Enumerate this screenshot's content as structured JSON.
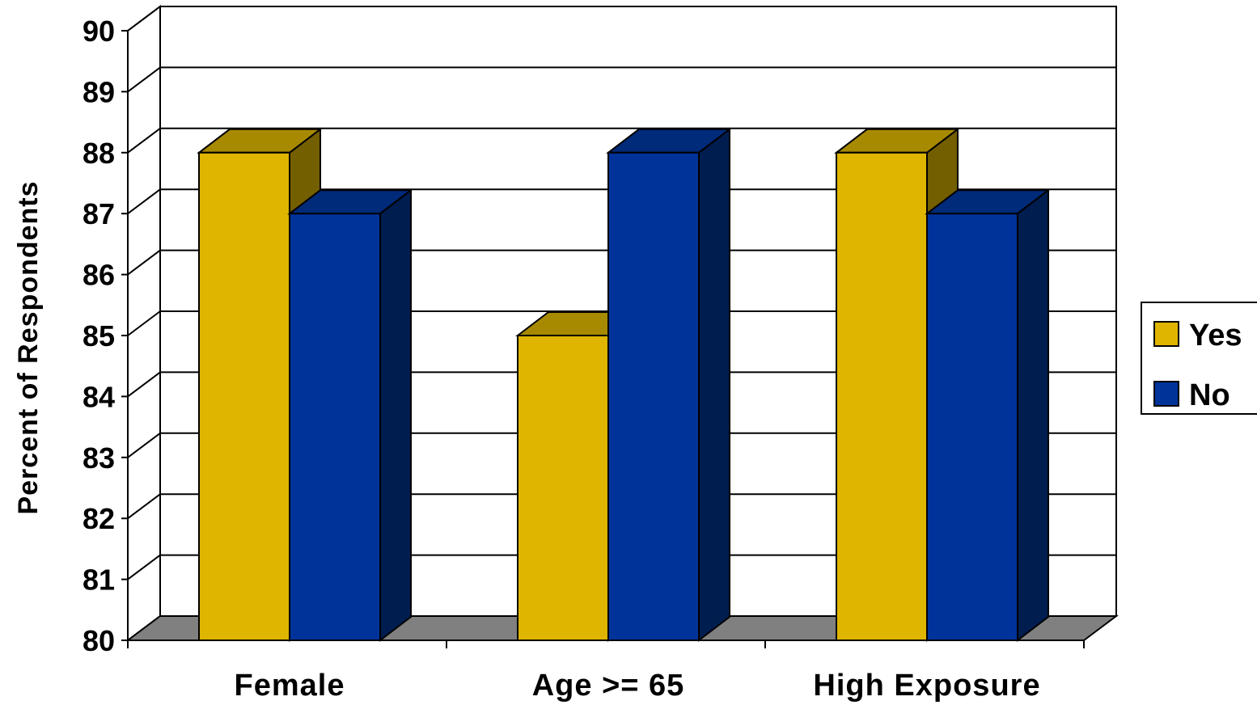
{
  "chart_data": {
    "type": "bar",
    "style": "3d-clustered-column",
    "categories": [
      "Female",
      "Age >= 65",
      "High Exposure"
    ],
    "series": [
      {
        "name": "Yes",
        "values": [
          88,
          85,
          88
        ],
        "color": "#dfb500",
        "top_color": "#a88a00",
        "side_color": "#735e00"
      },
      {
        "name": "No",
        "values": [
          87,
          88,
          87
        ],
        "color": "#00339a",
        "top_color": "#002a7a",
        "side_color": "#001d50"
      }
    ],
    "title": "",
    "xlabel": "",
    "ylabel": "Percent of Respondents",
    "ylim": [
      80,
      90
    ],
    "yticks": [
      80,
      81,
      82,
      83,
      84,
      85,
      86,
      87,
      88,
      89,
      90
    ],
    "grid": true,
    "legend_position": "right",
    "floor_color": "#808080"
  }
}
